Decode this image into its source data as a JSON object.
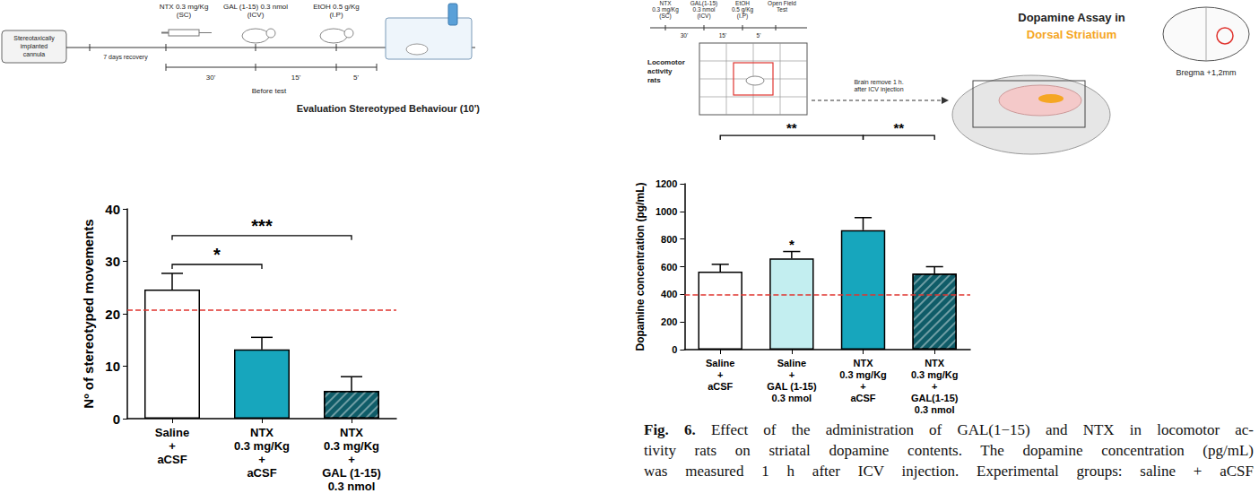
{
  "chart_data": [
    {
      "type": "bar",
      "categories": [
        "Saline + aCSF",
        "NTX 0.3 mg/Kg + aCSF",
        "NTX 0.3 mg/Kg + GAL (1-15) 0.3 nmol"
      ],
      "values": [
        24.6,
        13.2,
        5.3
      ],
      "errors": [
        3.1,
        2.3,
        2.7
      ],
      "colors": [
        "#ffffff",
        "#17a6bd",
        "#0f5c68"
      ],
      "ylabel": "Nº of stereotyped movements",
      "ylim": [
        0,
        40
      ],
      "yticks": [
        0,
        10,
        20,
        30,
        40
      ],
      "grid": false,
      "reference_line": {
        "value": 20.7,
        "color": "#e0342f",
        "line_style": "dashed"
      },
      "significance": [
        {
          "from": 0,
          "to": 1,
          "y": 29.4,
          "label": "*"
        },
        {
          "from": 0,
          "to": 2,
          "y": 34.9,
          "label": "***"
        }
      ]
    },
    {
      "type": "bar",
      "categories": [
        "Saline + aCSF",
        "Saline + GAL (1-15) 0.3 nmol",
        "NTX 0.3 mg/Kg + aCSF",
        "NTX 0.3 mg/Kg + GAL(1-15) 0.3 nmol"
      ],
      "values": [
        565,
        660,
        865,
        550
      ],
      "errors": [
        52,
        50,
        90,
        50
      ],
      "colors": [
        "#ffffff",
        "#c3eef0",
        "#17a6bd",
        "#0f5c68"
      ],
      "ylabel": "Dopamine concentration (pg/mL)",
      "ylim": [
        0,
        1200
      ],
      "yticks": [
        0,
        200,
        400,
        600,
        800,
        1000,
        1200
      ],
      "grid": false,
      "reference_line": {
        "value": 400,
        "color": "#e0342f",
        "line_style": "dashed"
      },
      "significance": [
        {
          "from": 0,
          "to": 2,
          "y": 1550,
          "label": "**"
        },
        {
          "from": 2,
          "to": 3,
          "y": 1550,
          "label": "**"
        }
      ],
      "annotations": [
        {
          "at": 1,
          "y": 715,
          "label": "*"
        }
      ]
    }
  ],
  "left_protocol": {
    "cannula": "Stereotaxically implanted cannula",
    "recovery": "7 days recovery",
    "steps": [
      "NTX 0.3 mg/Kg (SC)",
      "GAL (1-15) 0.3 nmol (ICV)",
      "EtOH 0.5 g/Kg (I.P)"
    ],
    "times": [
      "30'",
      "15'",
      "5'"
    ],
    "before": "Before test",
    "evaluation": "Evaluation Stereotyped Behaviour (10')"
  },
  "right_protocol": {
    "steps": [
      "NTX 0.3 mg/Kg (SC)",
      "GAL(1-15) 0.3 nmol (ICV)",
      "EtOH 0.5 g/Kg (I.P)"
    ],
    "test": "Open Field Test",
    "times": [
      "30'",
      "15'",
      "5'"
    ],
    "subjects": "Locomotor activity rats",
    "transfer": "Brain remove 1 h. after ICV injection",
    "assay": "Dopamine Assay in",
    "region": "Dorsal Striatium",
    "bregma": "Bregma +1,2mm"
  },
  "caption": {
    "label": "Fig. 6.",
    "lines": [
      "Effect of the administration of GAL(1−15) and NTX in locomotor ac-",
      "tivity rats on striatal dopamine contents. The dopamine concentration (pg/mL)",
      "was measured 1 h after ICV injection. Experimental groups: saline + aCSF"
    ]
  }
}
